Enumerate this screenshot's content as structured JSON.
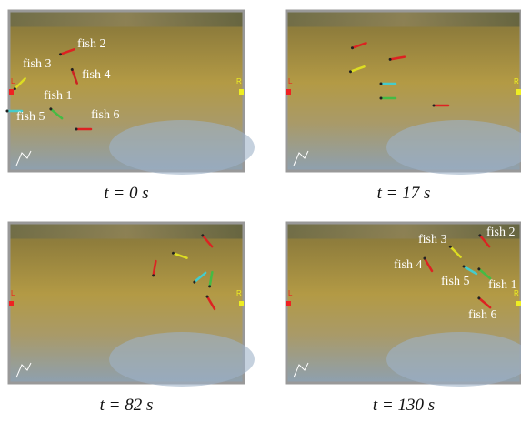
{
  "panels": [
    {
      "caption": "t = 0 s",
      "left_label": "L",
      "right_label": "R",
      "fish_labels": [
        "fish 2",
        "fish 3",
        "fish 4",
        "fish 1",
        "fish 5",
        "fish 6"
      ]
    },
    {
      "caption": "t = 17 s",
      "left_label": "L",
      "right_label": "R",
      "fish_labels": []
    },
    {
      "caption": "t = 82 s",
      "left_label": "L",
      "right_label": "R",
      "fish_labels": []
    },
    {
      "caption": "t = 130 s",
      "left_label": "L",
      "right_label": "R",
      "fish_labels": [
        "fish 2",
        "fish 3",
        "fish 4",
        "fish 5",
        "fish 1",
        "fish 6"
      ]
    }
  ]
}
